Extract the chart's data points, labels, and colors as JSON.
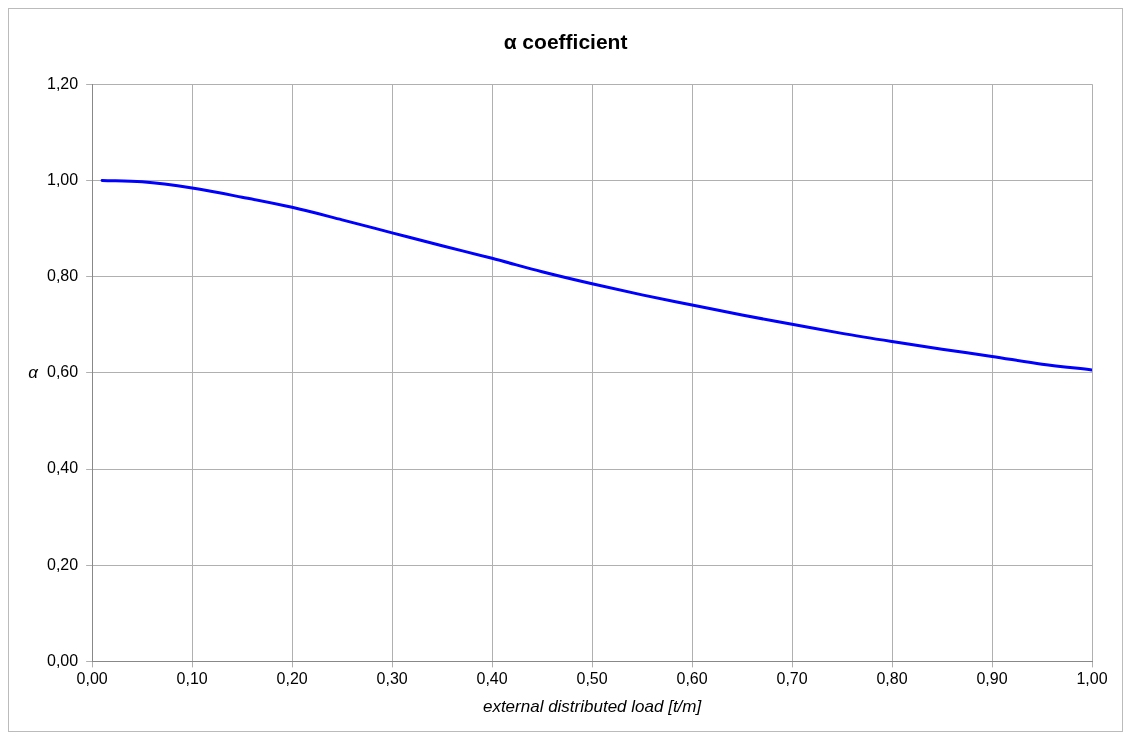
{
  "chart_data": {
    "type": "line",
    "title": "α coefficient",
    "xlabel": "external distributed load [t/m]",
    "ylabel": "α",
    "x": [
      0.01,
      0.05,
      0.1,
      0.15,
      0.2,
      0.25,
      0.3,
      0.35,
      0.4,
      0.45,
      0.5,
      0.55,
      0.6,
      0.65,
      0.7,
      0.75,
      0.8,
      0.85,
      0.9,
      0.95,
      1.0
    ],
    "series": [
      {
        "color": "#0000ff",
        "values": [
          1.0,
          0.997,
          0.984,
          0.965,
          0.944,
          0.918,
          0.891,
          0.864,
          0.838,
          0.81,
          0.785,
          0.762,
          0.741,
          0.72,
          0.701,
          0.682,
          0.665,
          0.649,
          0.634,
          0.618,
          0.606
        ]
      }
    ],
    "xlim": [
      0,
      1
    ],
    "xticks": [
      {
        "value": 0,
        "label": "0,00"
      },
      {
        "value": 0.1,
        "label": "0,10"
      },
      {
        "value": 0.2,
        "label": "0,20"
      },
      {
        "value": 0.3,
        "label": "0,30"
      },
      {
        "value": 0.4,
        "label": "0,40"
      },
      {
        "value": 0.5,
        "label": "0,50"
      },
      {
        "value": 0.6,
        "label": "0,60"
      },
      {
        "value": 0.7,
        "label": "0,70"
      },
      {
        "value": 0.8,
        "label": "0,80"
      },
      {
        "value": 0.9,
        "label": "0,90"
      },
      {
        "value": 1,
        "label": "1,00"
      }
    ],
    "ylim": [
      0,
      1.2
    ],
    "yticks": [
      {
        "value": 0,
        "label": "0,00"
      },
      {
        "value": 0.2,
        "label": "0,20"
      },
      {
        "value": 0.4,
        "label": "0,40"
      },
      {
        "value": 0.6,
        "label": "0,60"
      },
      {
        "value": 0.8,
        "label": "0,80"
      },
      {
        "value": 1,
        "label": "1,00"
      },
      {
        "value": 1.2,
        "label": "1,20"
      }
    ],
    "grid": true,
    "legend": false,
    "marker": "none",
    "line_style": "solid"
  }
}
